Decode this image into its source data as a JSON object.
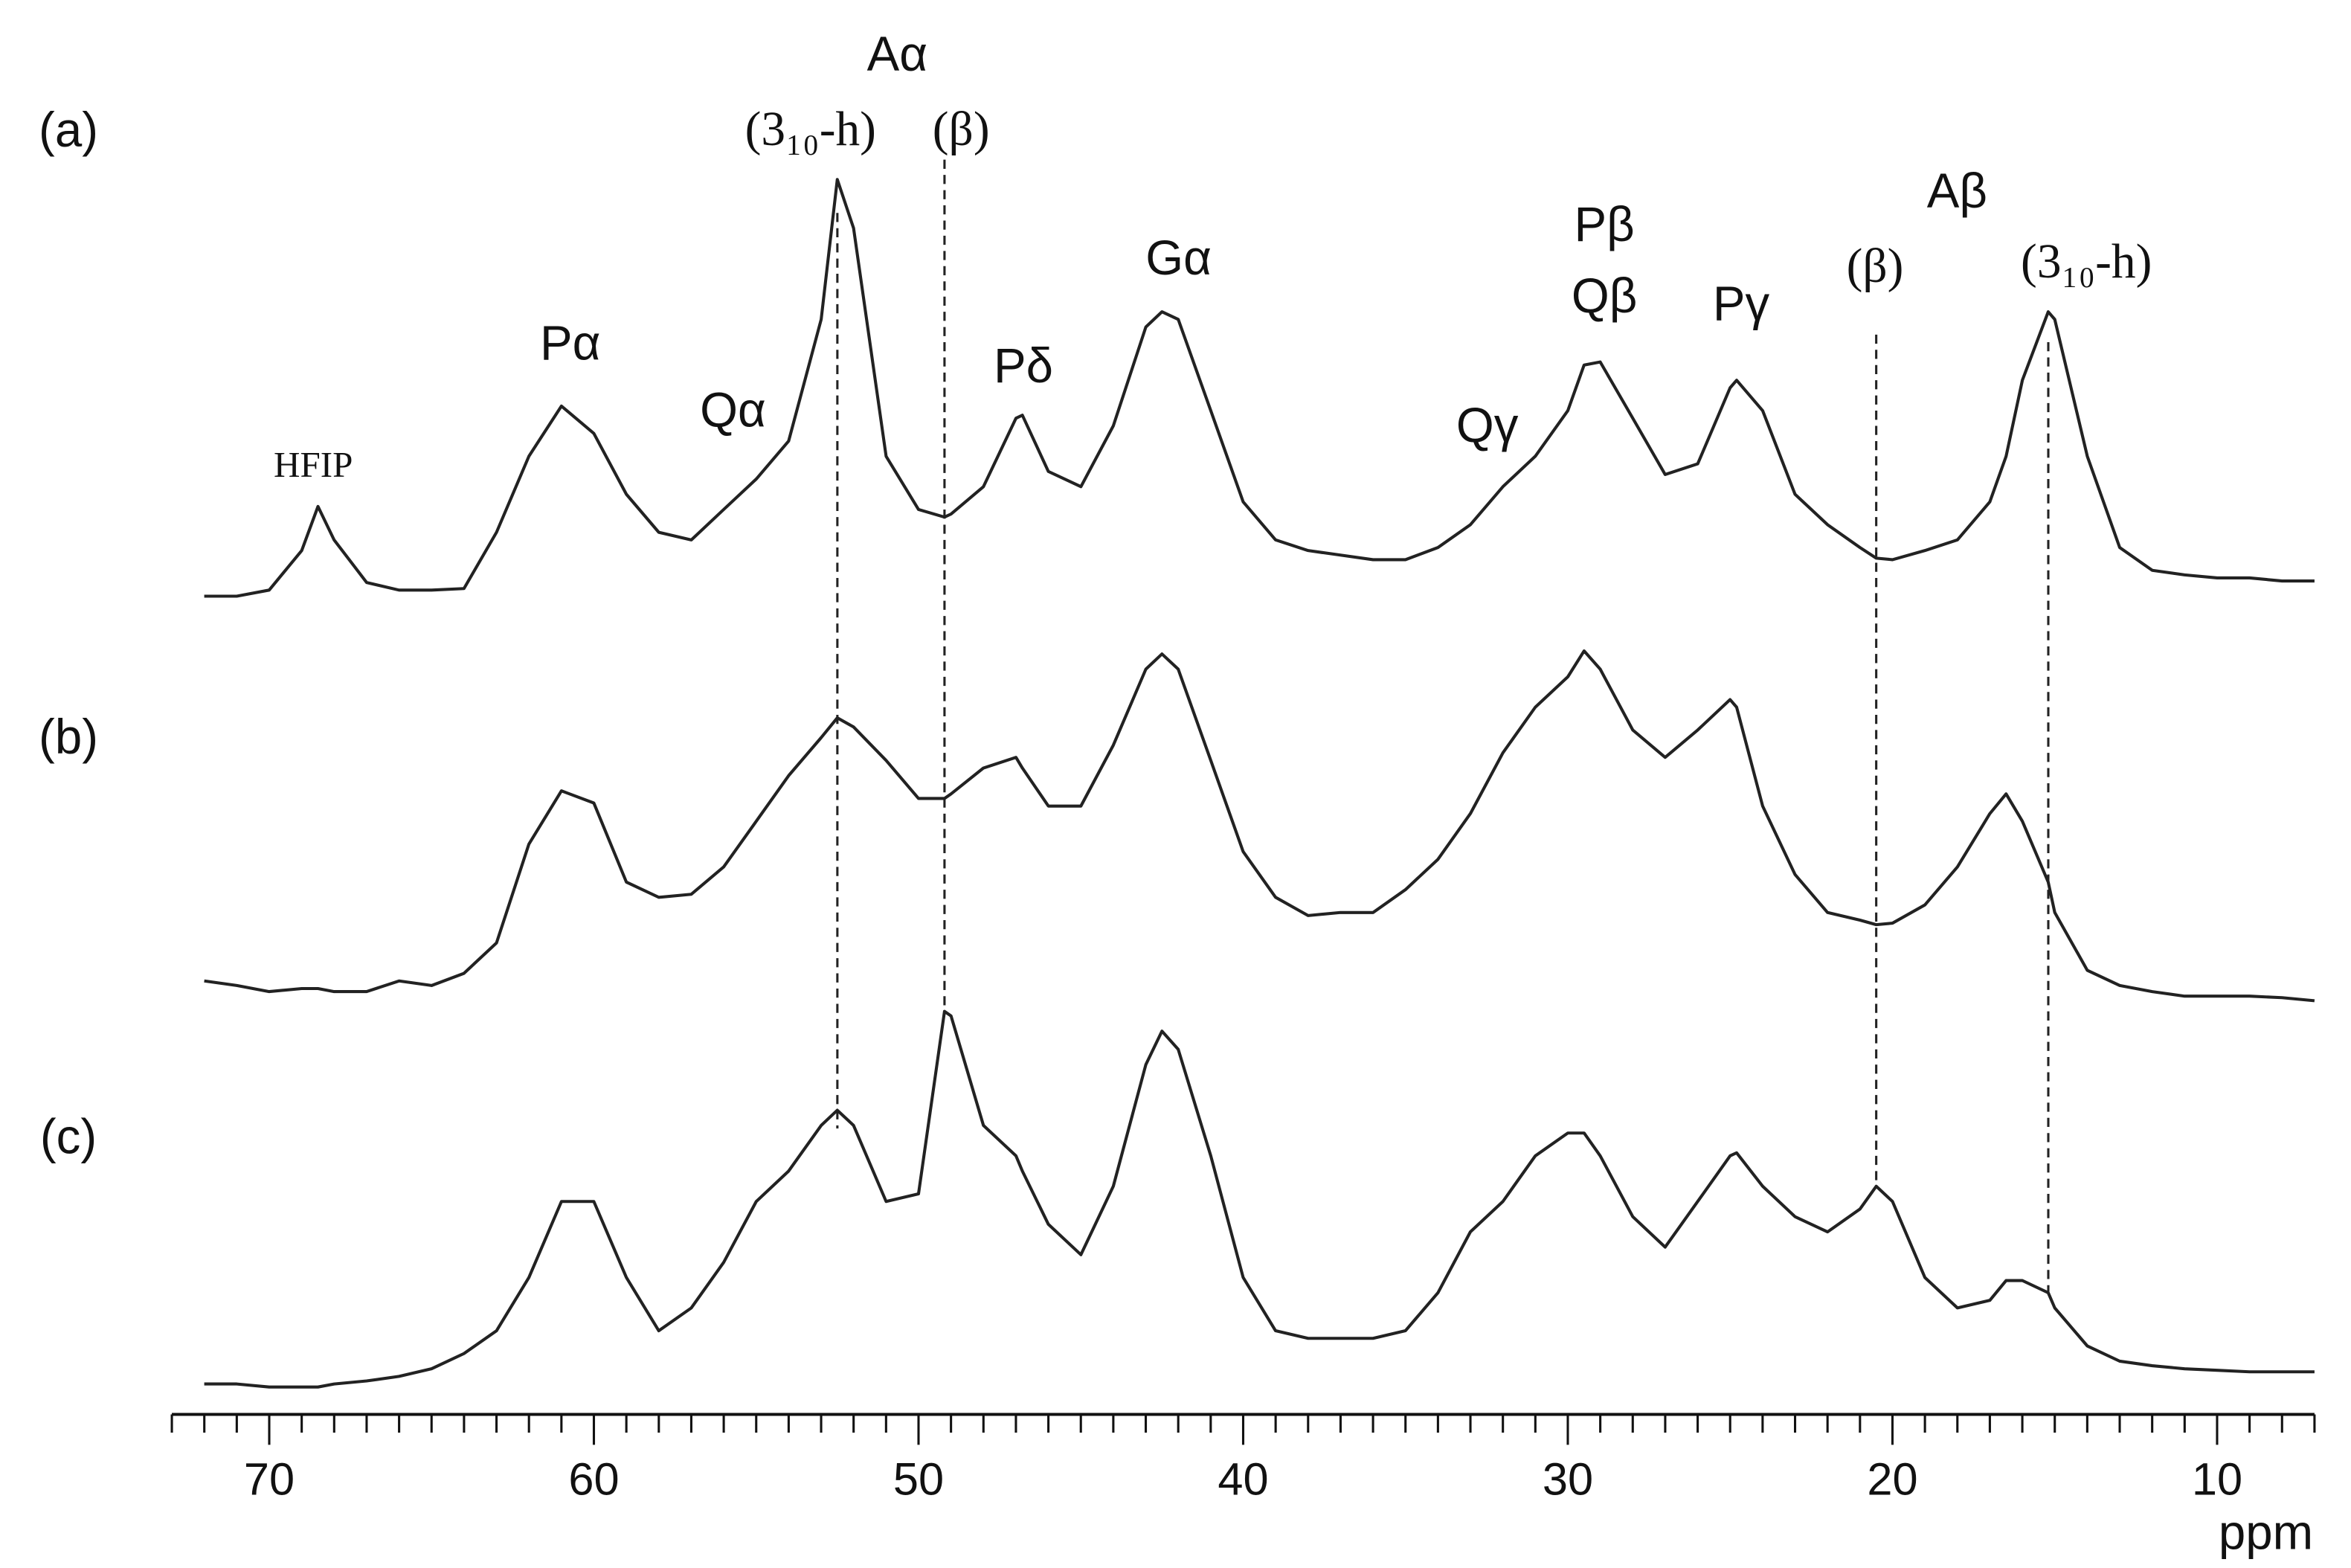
{
  "chart_data": {
    "type": "line",
    "x_label": "ppm",
    "xlim": [
      73,
      7
    ],
    "xticks": [
      70,
      60,
      50,
      40,
      30,
      20,
      10
    ],
    "xminorticks": [
      73,
      72,
      71,
      69,
      68,
      67,
      66,
      65,
      64,
      63,
      62,
      61,
      59,
      58,
      57,
      56,
      55,
      54,
      53,
      52,
      51,
      49,
      48,
      47,
      46,
      45,
      44,
      43,
      42,
      41,
      39,
      38,
      37,
      36,
      35,
      34,
      33,
      32,
      31,
      29,
      28,
      27,
      26,
      25,
      24,
      23,
      22,
      21,
      19,
      18,
      17,
      16,
      15,
      14,
      13,
      12,
      11,
      9,
      8,
      7
    ],
    "x": [
      72,
      71,
      70,
      69,
      68.5,
      68,
      67,
      66,
      65,
      64,
      63,
      62,
      61,
      60,
      59,
      58,
      57,
      56,
      55,
      54,
      53,
      52.5,
      52,
      51,
      50,
      49.2,
      49,
      48,
      47,
      46.8,
      46,
      45,
      44,
      43,
      42.5,
      42,
      41,
      40,
      39,
      38,
      37,
      36,
      35,
      34,
      33,
      32,
      31,
      30,
      29.5,
      29,
      28,
      27,
      26,
      25,
      24.8,
      24,
      23,
      22,
      21,
      20.5,
      20,
      19,
      18,
      17,
      16.5,
      16,
      15.2,
      15,
      14,
      13,
      12,
      11,
      10,
      9,
      8,
      7
    ],
    "series": [
      {
        "name": "(a)",
        "color": "#222222",
        "values": [
          0,
          0,
          4,
          30,
          59,
          37,
          9,
          4,
          4,
          5,
          42,
          92,
          125,
          107,
          67,
          42,
          37,
          57,
          77,
          102,
          182,
          274,
          242,
          92,
          57,
          52,
          54,
          72,
          117,
          119,
          82,
          72,
          112,
          177,
          187,
          182,
          122,
          62,
          37,
          30,
          27,
          24,
          24,
          32,
          47,
          72,
          92,
          122,
          152,
          154,
          117,
          80,
          87,
          137,
          142,
          122,
          67,
          47,
          32,
          25,
          24,
          30,
          37,
          62,
          92,
          142,
          187,
          182,
          92,
          32,
          17,
          14,
          12,
          12,
          10,
          10
        ]
      },
      {
        "name": "(b)",
        "color": "#222222",
        "values": [
          7,
          4,
          0,
          2,
          2,
          0,
          0,
          7,
          4,
          12,
          32,
          97,
          132,
          124,
          72,
          62,
          64,
          82,
          112,
          142,
          167,
          180,
          174,
          152,
          127,
          127,
          130,
          147,
          154,
          147,
          122,
          122,
          162,
          212,
          222,
          212,
          152,
          92,
          62,
          50,
          52,
          52,
          67,
          87,
          117,
          157,
          187,
          207,
          224,
          212,
          172,
          154,
          172,
          192,
          187,
          122,
          77,
          52,
          47,
          44,
          45,
          57,
          82,
          117,
          130,
          112,
          72,
          52,
          14,
          4,
          0,
          -3,
          -3,
          -3,
          -4,
          -6
        ]
      },
      {
        "name": "(c)",
        "color": "#222222",
        "values": [
          2,
          2,
          0,
          0,
          0,
          2,
          4,
          7,
          12,
          22,
          37,
          72,
          122,
          122,
          72,
          37,
          52,
          82,
          122,
          142,
          172,
          182,
          172,
          122,
          127,
          247,
          244,
          172,
          152,
          142,
          107,
          87,
          132,
          212,
          234,
          222,
          152,
          72,
          37,
          32,
          32,
          32,
          37,
          62,
          102,
          122,
          152,
          167,
          167,
          152,
          112,
          92,
          122,
          152,
          154,
          132,
          112,
          102,
          117,
          132,
          122,
          72,
          52,
          57,
          70,
          70,
          62,
          52,
          27,
          17,
          14,
          12,
          11,
          10,
          10,
          10
        ]
      }
    ],
    "reference_lines": [
      52.5,
      49.2,
      20.5,
      15.2
    ],
    "annotations": [
      "HFIP",
      "Pα",
      "Qα",
      "Aα",
      "(3₁₀-h)",
      "(β)",
      "Pδ",
      "Gα",
      "Qγ",
      "Pβ",
      "Qβ",
      "Pγ",
      "(β)",
      "Aβ",
      "(3₁₀-h)"
    ]
  }
}
